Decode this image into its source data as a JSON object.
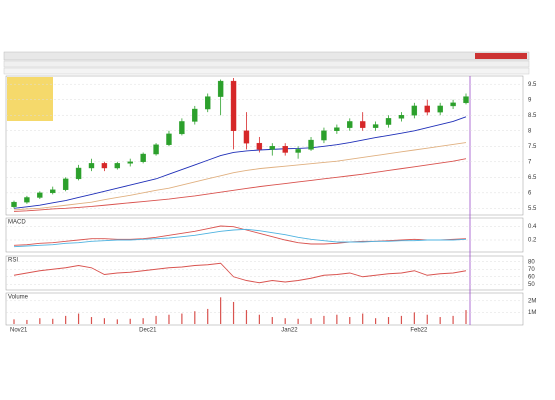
{
  "chart_data": [
    {
      "type": "candlestick",
      "categories": [
        "Nov21",
        null,
        null,
        null,
        null,
        null,
        null,
        null,
        null,
        null,
        "Dec21",
        null,
        null,
        null,
        null,
        null,
        null,
        null,
        null,
        null,
        null,
        "Jan22",
        null,
        null,
        null,
        null,
        null,
        null,
        null,
        null,
        null,
        "Feb22",
        null,
        null,
        null,
        null
      ],
      "open": [
        5.55,
        5.7,
        5.85,
        6.0,
        6.1,
        6.45,
        6.8,
        6.95,
        6.8,
        6.95,
        7.0,
        7.25,
        7.55,
        7.9,
        8.3,
        8.7,
        9.1,
        9.6,
        8.0,
        7.6,
        7.4,
        7.5,
        7.3,
        7.4,
        7.7,
        8.0,
        8.1,
        8.3,
        8.1,
        8.2,
        8.4,
        8.5,
        8.8,
        8.6,
        8.8,
        8.9
      ],
      "high": [
        5.75,
        5.9,
        6.05,
        6.2,
        6.5,
        6.9,
        7.1,
        7.0,
        7.0,
        7.1,
        7.3,
        7.6,
        8.0,
        8.4,
        8.8,
        9.2,
        9.65,
        9.7,
        8.6,
        7.8,
        7.6,
        7.6,
        7.5,
        7.8,
        8.1,
        8.2,
        8.4,
        8.6,
        8.3,
        8.5,
        8.6,
        8.9,
        9.0,
        8.9,
        9.0,
        9.2
      ],
      "low": [
        5.5,
        5.65,
        5.8,
        5.95,
        6.05,
        6.4,
        6.7,
        6.7,
        6.75,
        6.85,
        6.95,
        7.2,
        7.5,
        7.85,
        8.2,
        8.6,
        8.5,
        7.4,
        7.4,
        7.3,
        7.2,
        7.2,
        7.1,
        7.35,
        7.6,
        7.9,
        8.0,
        8.0,
        8.0,
        8.1,
        8.3,
        8.4,
        8.5,
        8.5,
        8.7,
        8.85
      ],
      "close": [
        5.7,
        5.85,
        6.0,
        6.1,
        6.45,
        6.8,
        6.95,
        6.8,
        6.95,
        7.0,
        7.25,
        7.55,
        7.9,
        8.3,
        8.7,
        9.1,
        9.6,
        8.0,
        7.6,
        7.4,
        7.5,
        7.3,
        7.4,
        7.7,
        8.0,
        8.1,
        8.3,
        8.1,
        8.2,
        8.4,
        8.5,
        8.8,
        8.6,
        8.8,
        8.9,
        9.1
      ],
      "series": [
        {
          "color": "#1f2fb8",
          "values": [
            5.5,
            5.55,
            5.6,
            5.68,
            5.75,
            5.85,
            5.95,
            6.05,
            6.15,
            6.25,
            6.35,
            6.45,
            6.6,
            6.75,
            6.9,
            7.05,
            7.2,
            7.3,
            7.35,
            7.38,
            7.4,
            7.42,
            7.43,
            7.45,
            7.5,
            7.55,
            7.62,
            7.7,
            7.78,
            7.85,
            7.92,
            8.0,
            8.1,
            8.2,
            8.3,
            8.45
          ]
        },
        {
          "color": "#e0b080",
          "values": [
            5.45,
            5.48,
            5.5,
            5.55,
            5.6,
            5.65,
            5.7,
            5.78,
            5.85,
            5.92,
            6.0,
            6.08,
            6.15,
            6.25,
            6.35,
            6.45,
            6.55,
            6.65,
            6.72,
            6.78,
            6.82,
            6.86,
            6.9,
            6.94,
            6.98,
            7.02,
            7.08,
            7.14,
            7.2,
            7.26,
            7.32,
            7.38,
            7.44,
            7.5,
            7.56,
            7.62
          ]
        },
        {
          "color": "#d9534f",
          "values": [
            5.4,
            5.42,
            5.45,
            5.48,
            5.5,
            5.53,
            5.56,
            5.6,
            5.64,
            5.68,
            5.72,
            5.76,
            5.8,
            5.85,
            5.9,
            5.96,
            6.02,
            6.08,
            6.14,
            6.2,
            6.25,
            6.3,
            6.35,
            6.4,
            6.45,
            6.5,
            6.55,
            6.6,
            6.66,
            6.72,
            6.78,
            6.84,
            6.9,
            6.96,
            7.02,
            7.1
          ]
        }
      ],
      "ylim": [
        5.35,
        9.7
      ],
      "yticks": [
        5.5,
        6,
        6.5,
        7,
        7.5,
        8,
        8.5,
        9,
        9.5
      ],
      "grid": true,
      "up_color": "#2ca02c",
      "down_color": "#d62728"
    },
    {
      "type": "line",
      "title": "MACD",
      "series": [
        {
          "color": "#d9534f",
          "values": [
            0.12,
            0.13,
            0.15,
            0.16,
            0.18,
            0.2,
            0.22,
            0.22,
            0.21,
            0.21,
            0.22,
            0.24,
            0.27,
            0.3,
            0.33,
            0.37,
            0.41,
            0.4,
            0.35,
            0.3,
            0.25,
            0.2,
            0.16,
            0.14,
            0.14,
            0.15,
            0.17,
            0.18,
            0.18,
            0.19,
            0.2,
            0.21,
            0.2,
            0.2,
            0.21,
            0.22
          ]
        },
        {
          "color": "#4fb3e0",
          "values": [
            0.1,
            0.11,
            0.12,
            0.13,
            0.15,
            0.16,
            0.18,
            0.19,
            0.2,
            0.2,
            0.21,
            0.22,
            0.23,
            0.25,
            0.27,
            0.3,
            0.33,
            0.35,
            0.36,
            0.34,
            0.31,
            0.28,
            0.24,
            0.21,
            0.19,
            0.17,
            0.17,
            0.17,
            0.18,
            0.18,
            0.19,
            0.19,
            0.2,
            0.2,
            0.2,
            0.21
          ]
        }
      ],
      "ylim": [
        0.05,
        0.5
      ],
      "yticks": [
        0.2,
        0.4
      ],
      "grid": true
    },
    {
      "type": "line",
      "title": "RSI",
      "series": [
        {
          "color": "#d9534f",
          "values": [
            62,
            65,
            68,
            70,
            72,
            75,
            72,
            63,
            65,
            66,
            68,
            70,
            72,
            73,
            75,
            76,
            78,
            60,
            55,
            52,
            55,
            53,
            55,
            58,
            62,
            63,
            65,
            60,
            62,
            64,
            65,
            68,
            62,
            64,
            65,
            68
          ]
        }
      ],
      "ylim": [
        45,
        85
      ],
      "yticks": [
        50,
        60,
        70,
        80
      ],
      "grid": true
    },
    {
      "type": "bar",
      "title": "Volume",
      "values": [
        400000,
        350000,
        500000,
        450000,
        700000,
        900000,
        600000,
        500000,
        400000,
        450000,
        500000,
        700000,
        800000,
        900000,
        1100000,
        1300000,
        2300000,
        1900000,
        1200000,
        800000,
        600000,
        500000,
        450000,
        500000,
        700000,
        800000,
        600000,
        900000,
        500000,
        600000,
        700000,
        1000000,
        800000,
        600000,
        700000,
        1200000
      ],
      "color": "#d9534f",
      "ylim": [
        0,
        2500000
      ],
      "yticks": [
        {
          "value": 1000000,
          "label": "1M"
        },
        {
          "value": 2000000,
          "label": "2M"
        }
      ],
      "grid": true
    }
  ]
}
